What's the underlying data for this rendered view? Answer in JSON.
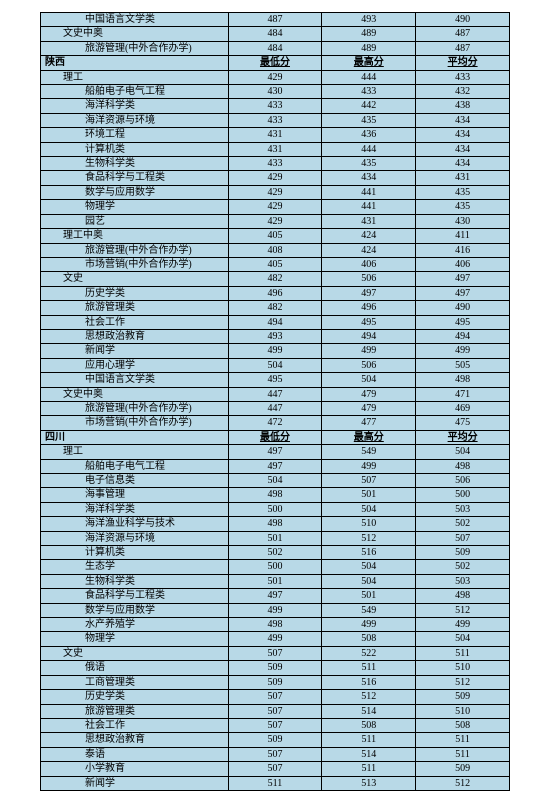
{
  "colors": {
    "cell_bg": "#b8d9e7",
    "border": "#000000",
    "text": "#000000",
    "page_bg": "#ffffff"
  },
  "columns": {
    "col1_width_pct": 40,
    "col_other_width_pct": 20
  },
  "header_labels": [
    "最低分",
    "最高分",
    "平均分"
  ],
  "rows": [
    {
      "indent": 2,
      "label": "中国语言文学类",
      "min": "487",
      "max": "493",
      "avg": "490"
    },
    {
      "indent": 1,
      "label": "文史中奥",
      "min": "484",
      "max": "489",
      "avg": "487"
    },
    {
      "indent": 2,
      "label": "旅游管理(中外合作办学)",
      "min": "484",
      "max": "489",
      "avg": "487"
    },
    {
      "indent": 0,
      "label": "陕西",
      "min": "最低分",
      "max": "最高分",
      "avg": "平均分",
      "header": true
    },
    {
      "indent": 1,
      "label": "理工",
      "min": "429",
      "max": "444",
      "avg": "433"
    },
    {
      "indent": 2,
      "label": "船舶电子电气工程",
      "min": "430",
      "max": "433",
      "avg": "432"
    },
    {
      "indent": 2,
      "label": "海洋科学类",
      "min": "433",
      "max": "442",
      "avg": "438"
    },
    {
      "indent": 2,
      "label": "海洋资源与环境",
      "min": "433",
      "max": "435",
      "avg": "434"
    },
    {
      "indent": 2,
      "label": "环境工程",
      "min": "431",
      "max": "436",
      "avg": "434"
    },
    {
      "indent": 2,
      "label": "计算机类",
      "min": "431",
      "max": "444",
      "avg": "434"
    },
    {
      "indent": 2,
      "label": "生物科学类",
      "min": "433",
      "max": "435",
      "avg": "434"
    },
    {
      "indent": 2,
      "label": "食品科学与工程类",
      "min": "429",
      "max": "434",
      "avg": "431"
    },
    {
      "indent": 2,
      "label": "数学与应用数学",
      "min": "429",
      "max": "441",
      "avg": "435"
    },
    {
      "indent": 2,
      "label": "物理学",
      "min": "429",
      "max": "441",
      "avg": "435"
    },
    {
      "indent": 2,
      "label": "园艺",
      "min": "429",
      "max": "431",
      "avg": "430"
    },
    {
      "indent": 1,
      "label": "理工中奥",
      "min": "405",
      "max": "424",
      "avg": "411"
    },
    {
      "indent": 2,
      "label": "旅游管理(中外合作办学)",
      "min": "408",
      "max": "424",
      "avg": "416"
    },
    {
      "indent": 2,
      "label": "市场营销(中外合作办学)",
      "min": "405",
      "max": "406",
      "avg": "406"
    },
    {
      "indent": 1,
      "label": "文史",
      "min": "482",
      "max": "506",
      "avg": "497"
    },
    {
      "indent": 2,
      "label": "历史学类",
      "min": "496",
      "max": "497",
      "avg": "497"
    },
    {
      "indent": 2,
      "label": "旅游管理类",
      "min": "482",
      "max": "496",
      "avg": "490"
    },
    {
      "indent": 2,
      "label": "社会工作",
      "min": "494",
      "max": "495",
      "avg": "495"
    },
    {
      "indent": 2,
      "label": "思想政治教育",
      "min": "493",
      "max": "494",
      "avg": "494"
    },
    {
      "indent": 2,
      "label": "新闻学",
      "min": "499",
      "max": "499",
      "avg": "499"
    },
    {
      "indent": 2,
      "label": "应用心理学",
      "min": "504",
      "max": "506",
      "avg": "505"
    },
    {
      "indent": 2,
      "label": "中国语言文学类",
      "min": "495",
      "max": "504",
      "avg": "498"
    },
    {
      "indent": 1,
      "label": "文史中奥",
      "min": "447",
      "max": "479",
      "avg": "471"
    },
    {
      "indent": 2,
      "label": "旅游管理(中外合作办学)",
      "min": "447",
      "max": "479",
      "avg": "469"
    },
    {
      "indent": 2,
      "label": "市场营销(中外合作办学)",
      "min": "472",
      "max": "477",
      "avg": "475"
    },
    {
      "indent": 0,
      "label": "四川",
      "min": "最低分",
      "max": "最高分",
      "avg": "平均分",
      "header": true
    },
    {
      "indent": 1,
      "label": "理工",
      "min": "497",
      "max": "549",
      "avg": "504"
    },
    {
      "indent": 2,
      "label": "船舶电子电气工程",
      "min": "497",
      "max": "499",
      "avg": "498"
    },
    {
      "indent": 2,
      "label": "电子信息类",
      "min": "504",
      "max": "507",
      "avg": "506"
    },
    {
      "indent": 2,
      "label": "海事管理",
      "min": "498",
      "max": "501",
      "avg": "500"
    },
    {
      "indent": 2,
      "label": "海洋科学类",
      "min": "500",
      "max": "504",
      "avg": "503"
    },
    {
      "indent": 2,
      "label": "海洋渔业科学与技术",
      "min": "498",
      "max": "510",
      "avg": "502"
    },
    {
      "indent": 2,
      "label": "海洋资源与环境",
      "min": "501",
      "max": "512",
      "avg": "507"
    },
    {
      "indent": 2,
      "label": "计算机类",
      "min": "502",
      "max": "516",
      "avg": "509"
    },
    {
      "indent": 2,
      "label": "生态学",
      "min": "500",
      "max": "504",
      "avg": "502"
    },
    {
      "indent": 2,
      "label": "生物科学类",
      "min": "501",
      "max": "504",
      "avg": "503"
    },
    {
      "indent": 2,
      "label": "食品科学与工程类",
      "min": "497",
      "max": "501",
      "avg": "498"
    },
    {
      "indent": 2,
      "label": "数学与应用数学",
      "min": "499",
      "max": "549",
      "avg": "512"
    },
    {
      "indent": 2,
      "label": "水产养殖学",
      "min": "498",
      "max": "499",
      "avg": "499"
    },
    {
      "indent": 2,
      "label": "物理学",
      "min": "499",
      "max": "508",
      "avg": "504"
    },
    {
      "indent": 1,
      "label": "文史",
      "min": "507",
      "max": "522",
      "avg": "511"
    },
    {
      "indent": 2,
      "label": "俄语",
      "min": "509",
      "max": "511",
      "avg": "510"
    },
    {
      "indent": 2,
      "label": "工商管理类",
      "min": "509",
      "max": "516",
      "avg": "512"
    },
    {
      "indent": 2,
      "label": "历史学类",
      "min": "507",
      "max": "512",
      "avg": "509"
    },
    {
      "indent": 2,
      "label": "旅游管理类",
      "min": "507",
      "max": "514",
      "avg": "510"
    },
    {
      "indent": 2,
      "label": "社会工作",
      "min": "507",
      "max": "508",
      "avg": "508"
    },
    {
      "indent": 2,
      "label": "思想政治教育",
      "min": "509",
      "max": "511",
      "avg": "511"
    },
    {
      "indent": 2,
      "label": "泰语",
      "min": "507",
      "max": "514",
      "avg": "511"
    },
    {
      "indent": 2,
      "label": "小学教育",
      "min": "507",
      "max": "511",
      "avg": "509"
    },
    {
      "indent": 2,
      "label": "新闻学",
      "min": "511",
      "max": "513",
      "avg": "512"
    }
  ]
}
